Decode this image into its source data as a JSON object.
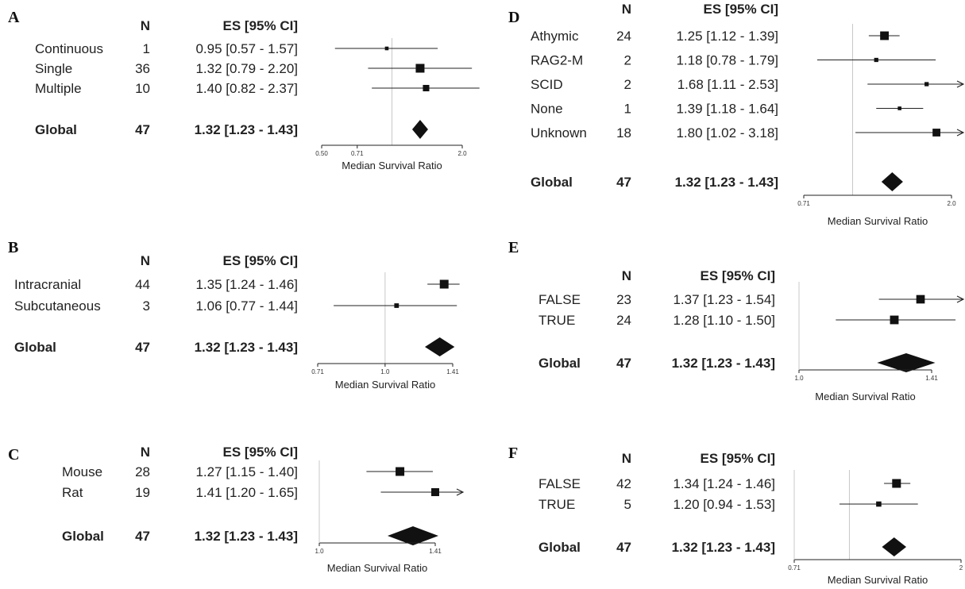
{
  "chart_data": [
    {
      "type": "forest",
      "panel": "A",
      "header": {
        "n": "N",
        "es": "ES [95% CI]"
      },
      "rows": [
        {
          "label": "Continuous",
          "n": "1",
          "es": 0.95,
          "lo": 0.57,
          "hi": 1.57,
          "text": "0.95 [0.57 - 1.57]"
        },
        {
          "label": "Single",
          "n": "36",
          "es": 1.32,
          "lo": 0.79,
          "hi": 2.2,
          "text": "1.32 [0.79 - 2.20]"
        },
        {
          "label": "Multiple",
          "n": "10",
          "es": 1.4,
          "lo": 0.82,
          "hi": 2.37,
          "text": "1.40 [0.82 - 2.37]"
        }
      ],
      "global": {
        "label": "Global",
        "n": "47",
        "es": 1.32,
        "lo": 1.23,
        "hi": 1.43,
        "text": "1.32 [1.23 - 1.43]"
      },
      "xlim": [
        0.5,
        2.0
      ],
      "log_scale": true,
      "ref_line": 1.0,
      "ticks": [
        "0.50",
        "0.71",
        "2.0"
      ],
      "xlabel": "Median Survival Ratio"
    },
    {
      "type": "forest",
      "panel": "B",
      "header": {
        "n": "N",
        "es": "ES [95% CI]"
      },
      "rows": [
        {
          "label": "Intracranial",
          "n": "44",
          "es": 1.35,
          "lo": 1.24,
          "hi": 1.46,
          "text": "1.35 [1.24 - 1.46]"
        },
        {
          "label": "Subcutaneous",
          "n": "3",
          "es": 1.06,
          "lo": 0.77,
          "hi": 1.44,
          "text": "1.06 [0.77 - 1.44]"
        }
      ],
      "global": {
        "label": "Global",
        "n": "47",
        "es": 1.32,
        "lo": 1.23,
        "hi": 1.43,
        "text": "1.32 [1.23 - 1.43]"
      },
      "xlim": [
        0.71,
        1.41
      ],
      "log_scale": true,
      "ref_line": 1.0,
      "ticks": [
        "0.71",
        "1.0",
        "1.41"
      ],
      "xlabel": "Median Survival Ratio"
    },
    {
      "type": "forest",
      "panel": "C",
      "header": {
        "n": "N",
        "es": "ES [95% CI]"
      },
      "rows": [
        {
          "label": "Mouse",
          "n": "28",
          "es": 1.27,
          "lo": 1.15,
          "hi": 1.4,
          "text": "1.27 [1.15 - 1.40]"
        },
        {
          "label": "Rat",
          "n": "19",
          "es": 1.41,
          "lo": 1.2,
          "hi": 1.65,
          "text": "1.41 [1.20 - 1.65]"
        }
      ],
      "global": {
        "label": "Global",
        "n": "47",
        "es": 1.32,
        "lo": 1.23,
        "hi": 1.43,
        "text": "1.32 [1.23 - 1.43]"
      },
      "xlim": [
        1.0,
        1.41
      ],
      "log_scale": true,
      "ticks": [
        "1.0",
        "1.41"
      ],
      "xlabel": "Median Survival Ratio"
    },
    {
      "type": "forest",
      "panel": "D",
      "header": {
        "n": "N",
        "es": "ES [95% CI]"
      },
      "rows": [
        {
          "label": "Athymic",
          "n": "24",
          "es": 1.25,
          "lo": 1.12,
          "hi": 1.39,
          "text": "1.25 [1.12 - 1.39]"
        },
        {
          "label": "RAG2-M",
          "n": "2",
          "es": 1.18,
          "lo": 0.78,
          "hi": 1.79,
          "text": "1.18 [0.78 - 1.79]"
        },
        {
          "label": "SCID",
          "n": "2",
          "es": 1.68,
          "lo": 1.11,
          "hi": 2.53,
          "text": "1.68 [1.11 - 2.53]"
        },
        {
          "label": "None",
          "n": "1",
          "es": 1.39,
          "lo": 1.18,
          "hi": 1.64,
          "text": "1.39 [1.18 - 1.64]"
        },
        {
          "label": "Unknown",
          "n": "18",
          "es": 1.8,
          "lo": 1.02,
          "hi": 3.18,
          "text": "1.80 [1.02 - 3.18]"
        }
      ],
      "global": {
        "label": "Global",
        "n": "47",
        "es": 1.32,
        "lo": 1.23,
        "hi": 1.43,
        "text": "1.32 [1.23 - 1.43]"
      },
      "xlim": [
        0.71,
        2.0
      ],
      "log_scale": true,
      "ref_line": 1.0,
      "ticks": [
        "0.71",
        "2.0"
      ],
      "xlabel": "Median Survival Ratio"
    },
    {
      "type": "forest",
      "panel": "E",
      "header": {
        "n": "N",
        "es": "ES [95% CI]"
      },
      "rows": [
        {
          "label": "FALSE",
          "n": "23",
          "es": 1.37,
          "lo": 1.23,
          "hi": 1.54,
          "text": "1.37 [1.23 - 1.54]"
        },
        {
          "label": "TRUE",
          "n": "24",
          "es": 1.28,
          "lo": 1.1,
          "hi": 1.5,
          "text": "1.28 [1.10 - 1.50]"
        }
      ],
      "global": {
        "label": "Global",
        "n": "47",
        "es": 1.32,
        "lo": 1.23,
        "hi": 1.43,
        "text": "1.32 [1.23 - 1.43]"
      },
      "xlim": [
        1.0,
        1.41
      ],
      "log_scale": true,
      "ticks": [
        "1.0",
        "1.41"
      ],
      "xlabel": "Median Survival Ratio"
    },
    {
      "type": "forest",
      "panel": "F",
      "header": {
        "n": "N",
        "es": "ES [95% CI]"
      },
      "rows": [
        {
          "label": "FALSE",
          "n": "42",
          "es": 1.34,
          "lo": 1.24,
          "hi": 1.46,
          "text": "1.34 [1.24 - 1.46]"
        },
        {
          "label": "TRUE",
          "n": "5",
          "es": 1.2,
          "lo": 0.94,
          "hi": 1.53,
          "text": "1.20 [0.94 - 1.53]"
        }
      ],
      "global": {
        "label": "Global",
        "n": "47",
        "es": 1.32,
        "lo": 1.23,
        "hi": 1.43,
        "text": "1.32 [1.23 - 1.43]"
      },
      "xlim": [
        0.71,
        2.0
      ],
      "log_scale": true,
      "ref_line": 1.0,
      "ticks": [
        "0.71",
        "2"
      ],
      "xlabel": "Median Survival Ratio"
    }
  ]
}
